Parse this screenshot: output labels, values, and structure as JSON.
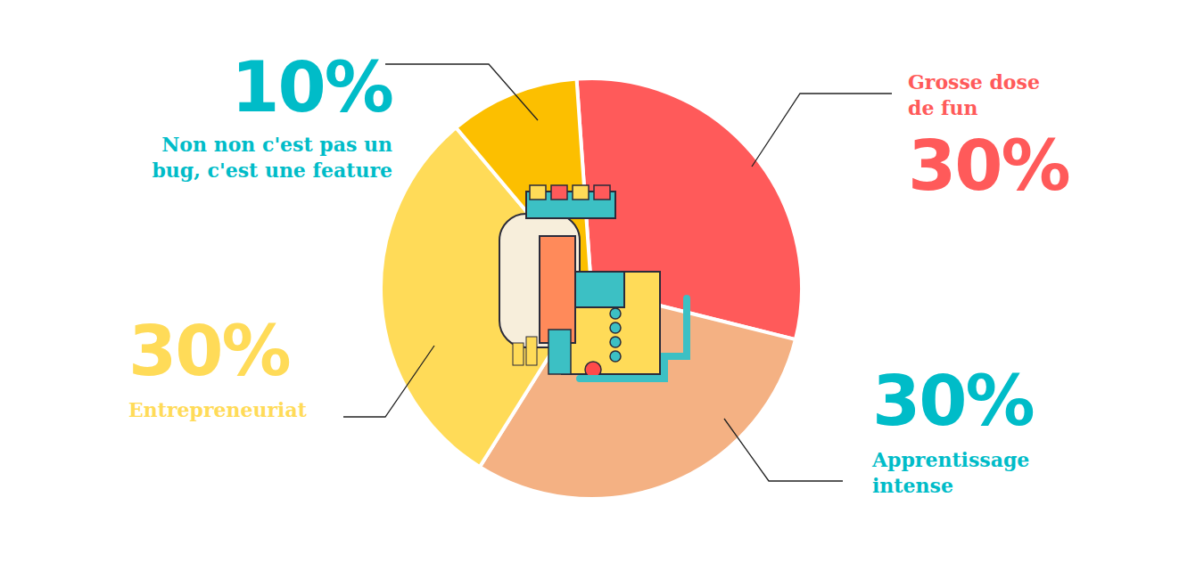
{
  "chart_data": {
    "type": "pie",
    "categories": [
      "Grosse dose de fun",
      "Apprentissage intense",
      "Entrepreneuriat",
      "Non non c'est pas un bug, c'est une feature"
    ],
    "values": [
      30,
      30,
      30,
      10
    ],
    "value_labels": [
      "30%",
      "30%",
      "30%",
      "10%"
    ],
    "colors": [
      "#ff5a5a",
      "#f4b183",
      "#ffdb58",
      "#fcbf00"
    ],
    "data_labels": true
  }
}
